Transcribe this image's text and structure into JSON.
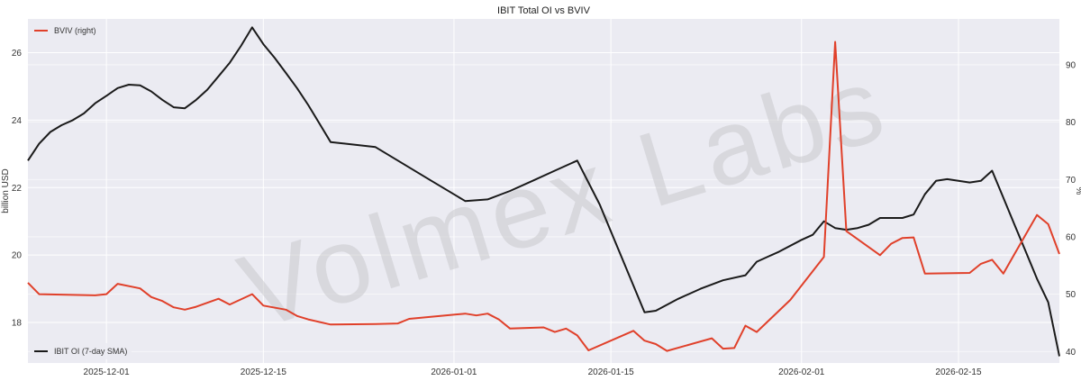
{
  "chart_data": {
    "type": "line",
    "title": "IBIT Total OI vs BVIV",
    "watermark": "Volmex Labs",
    "ylabel_left": "billion USD",
    "ylabel_right": "%",
    "x_ticks": [
      "2025-12-01",
      "2025-12-15",
      "2026-01-01",
      "2026-01-15",
      "2026-02-01",
      "2026-02-15"
    ],
    "xlim": [
      "2025-11-24",
      "2026-02-24"
    ],
    "ylim_left": [
      16.8,
      27
    ],
    "ylim_right": [
      38,
      98
    ],
    "y_ticks_left": [
      18,
      20,
      22,
      24,
      26
    ],
    "y_ticks_right": [
      40,
      50,
      60,
      70,
      80,
      90
    ],
    "grid": true,
    "background": "#ebebf2",
    "series": [
      {
        "name": "IBIT OI (7-day SMA)",
        "axis": "left",
        "color": "#1a1a1a",
        "legend_position": "bottom-left",
        "points": [
          [
            "2025-11-24",
            22.8
          ],
          [
            "2025-11-25",
            23.3
          ],
          [
            "2025-11-26",
            23.65
          ],
          [
            "2025-11-27",
            23.85
          ],
          [
            "2025-11-28",
            24.0
          ],
          [
            "2025-11-29",
            24.2
          ],
          [
            "2025-11-30",
            24.5
          ],
          [
            "2025-12-01",
            24.72
          ],
          [
            "2025-12-02",
            24.95
          ],
          [
            "2025-12-03",
            25.05
          ],
          [
            "2025-12-04",
            25.03
          ],
          [
            "2025-12-05",
            24.85
          ],
          [
            "2025-12-06",
            24.6
          ],
          [
            "2025-12-07",
            24.38
          ],
          [
            "2025-12-08",
            24.35
          ],
          [
            "2025-12-09",
            24.6
          ],
          [
            "2025-12-10",
            24.9
          ],
          [
            "2025-12-11",
            25.3
          ],
          [
            "2025-12-12",
            25.7
          ],
          [
            "2025-12-13",
            26.2
          ],
          [
            "2025-12-14",
            26.75
          ],
          [
            "2025-12-15",
            26.25
          ],
          [
            "2025-12-16",
            25.85
          ],
          [
            "2025-12-17",
            25.4
          ],
          [
            "2025-12-18",
            24.95
          ],
          [
            "2025-12-19",
            24.45
          ],
          [
            "2025-12-20",
            23.9
          ],
          [
            "2025-12-21",
            23.35
          ],
          [
            "2025-12-25",
            23.2
          ],
          [
            "2025-12-27",
            22.8
          ],
          [
            "2025-12-30",
            22.2
          ],
          [
            "2026-01-02",
            21.6
          ],
          [
            "2026-01-04",
            21.65
          ],
          [
            "2026-01-06",
            21.9
          ],
          [
            "2026-01-08",
            22.2
          ],
          [
            "2026-01-10",
            22.5
          ],
          [
            "2026-01-12",
            22.8
          ],
          [
            "2026-01-14",
            21.5
          ],
          [
            "2026-01-16",
            19.9
          ],
          [
            "2026-01-18",
            18.3
          ],
          [
            "2026-01-19",
            18.35
          ],
          [
            "2026-01-21",
            18.7
          ],
          [
            "2026-01-23",
            19.0
          ],
          [
            "2026-01-25",
            19.25
          ],
          [
            "2026-01-27",
            19.4
          ],
          [
            "2026-01-28",
            19.8
          ],
          [
            "2026-01-29",
            19.95
          ],
          [
            "2026-01-30",
            20.1
          ],
          [
            "2026-02-01",
            20.45
          ],
          [
            "2026-02-02",
            20.6
          ],
          [
            "2026-02-03",
            21.0
          ],
          [
            "2026-02-04",
            20.8
          ],
          [
            "2026-02-05",
            20.75
          ],
          [
            "2026-02-06",
            20.8
          ],
          [
            "2026-02-07",
            20.9
          ],
          [
            "2026-02-08",
            21.1
          ],
          [
            "2026-02-10",
            21.1
          ],
          [
            "2026-02-11",
            21.2
          ],
          [
            "2026-02-12",
            21.8
          ],
          [
            "2026-02-13",
            22.2
          ],
          [
            "2026-02-14",
            22.25
          ],
          [
            "2026-02-15",
            22.2
          ],
          [
            "2026-02-16",
            22.15
          ],
          [
            "2026-02-17",
            22.2
          ],
          [
            "2026-02-18",
            22.5
          ],
          [
            "2026-02-19",
            21.7
          ],
          [
            "2026-02-20",
            20.9
          ],
          [
            "2026-02-21",
            20.1
          ],
          [
            "2026-02-22",
            19.3
          ],
          [
            "2026-02-23",
            18.6
          ],
          [
            "2026-02-24",
            17.0
          ]
        ]
      },
      {
        "name": "BVIV (right)",
        "axis": "right",
        "color": "#e0402a",
        "legend_position": "top-left",
        "points": [
          [
            "2025-11-24",
            52.0
          ],
          [
            "2025-11-25",
            50.0
          ],
          [
            "2025-11-30",
            49.8
          ],
          [
            "2025-12-01",
            50.0
          ],
          [
            "2025-12-02",
            51.8
          ],
          [
            "2025-12-04",
            51.0
          ],
          [
            "2025-12-05",
            49.5
          ],
          [
            "2025-12-06",
            48.8
          ],
          [
            "2025-12-07",
            47.7
          ],
          [
            "2025-12-08",
            47.3
          ],
          [
            "2025-12-09",
            47.8
          ],
          [
            "2025-12-11",
            49.2
          ],
          [
            "2025-12-12",
            48.2
          ],
          [
            "2025-12-14",
            50.0
          ],
          [
            "2025-12-15",
            48.0
          ],
          [
            "2025-12-17",
            47.3
          ],
          [
            "2025-12-18",
            46.2
          ],
          [
            "2025-12-19",
            45.6
          ],
          [
            "2025-12-21",
            44.7
          ],
          [
            "2025-12-25",
            44.8
          ],
          [
            "2025-12-27",
            44.9
          ],
          [
            "2025-12-28",
            45.7
          ],
          [
            "2026-01-02",
            46.6
          ],
          [
            "2026-01-03",
            46.3
          ],
          [
            "2026-01-04",
            46.6
          ],
          [
            "2026-01-05",
            45.6
          ],
          [
            "2026-01-06",
            44.0
          ],
          [
            "2026-01-09",
            44.2
          ],
          [
            "2026-01-10",
            43.4
          ],
          [
            "2026-01-11",
            44.0
          ],
          [
            "2026-01-12",
            42.8
          ],
          [
            "2026-01-13",
            40.2
          ],
          [
            "2026-01-17",
            43.6
          ],
          [
            "2026-01-18",
            41.9
          ],
          [
            "2026-01-19",
            41.3
          ],
          [
            "2026-01-20",
            40.1
          ],
          [
            "2026-01-24",
            42.3
          ],
          [
            "2026-01-25",
            40.5
          ],
          [
            "2026-01-26",
            40.6
          ],
          [
            "2026-01-27",
            44.5
          ],
          [
            "2026-01-28",
            43.4
          ],
          [
            "2026-01-31",
            49.0
          ],
          [
            "2026-02-02",
            54.0
          ],
          [
            "2026-02-03",
            56.5
          ],
          [
            "2026-02-04",
            94.0
          ],
          [
            "2026-02-05",
            61.0
          ],
          [
            "2026-02-08",
            56.8
          ],
          [
            "2026-02-09",
            58.8
          ],
          [
            "2026-02-10",
            59.8
          ],
          [
            "2026-02-11",
            59.9
          ],
          [
            "2026-02-12",
            53.6
          ],
          [
            "2026-02-16",
            53.7
          ],
          [
            "2026-02-17",
            55.3
          ],
          [
            "2026-02-18",
            56.0
          ],
          [
            "2026-02-19",
            53.6
          ],
          [
            "2026-02-20",
            57.0
          ],
          [
            "2026-02-22",
            63.8
          ],
          [
            "2026-02-23",
            62.2
          ],
          [
            "2026-02-24",
            57.0
          ]
        ]
      }
    ]
  }
}
